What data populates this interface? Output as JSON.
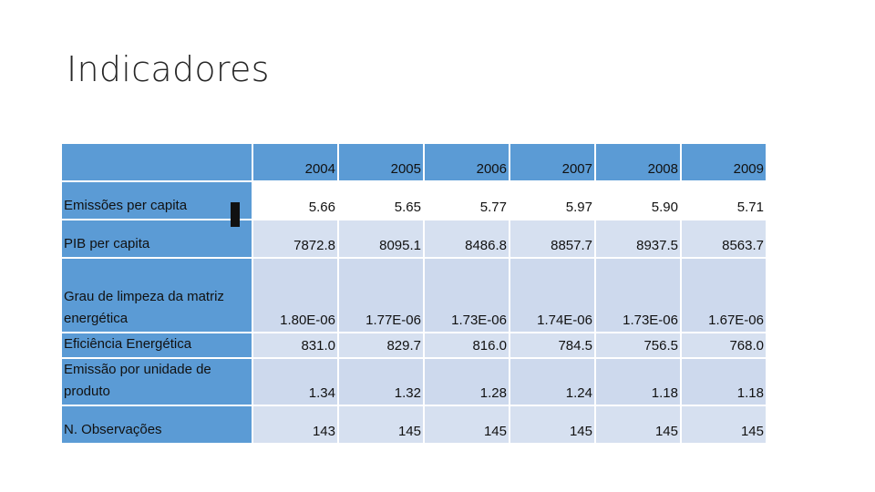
{
  "slide": {
    "title": "Indicadores"
  },
  "table": {
    "years": [
      "2004",
      "2005",
      "2006",
      "2007",
      "2008",
      "2009"
    ],
    "rows": [
      {
        "label": "Emissões per capita",
        "values": [
          "5.66",
          "5.65",
          "5.77",
          "5.97",
          "5.90",
          "5.71"
        ]
      },
      {
        "label": "PIB per capita",
        "values": [
          "7872.8",
          "8095.1",
          "8486.8",
          "8857.7",
          "8937.5",
          "8563.7"
        ]
      },
      {
        "label": "Grau de limpeza da matriz energética",
        "values": [
          "1.80E-06",
          "1.77E-06",
          "1.73E-06",
          "1.74E-06",
          "1.73E-06",
          "1.67E-06"
        ]
      },
      {
        "label": "Eficiência Energética",
        "values": [
          "831.0",
          "829.7",
          "816.0",
          "784.5",
          "756.5",
          "768.0"
        ]
      },
      {
        "label": "Emissão por unidade de produto",
        "values": [
          "1.34",
          "1.32",
          "1.28",
          "1.24",
          "1.18",
          "1.18"
        ]
      },
      {
        "label": "N. Observações",
        "values": [
          "143",
          "145",
          "145",
          "145",
          "145",
          "145"
        ]
      }
    ]
  },
  "colors": {
    "header": "#5b9bd5",
    "row_light": "#d6e0f0",
    "row_mid": "#cdd9ed"
  }
}
